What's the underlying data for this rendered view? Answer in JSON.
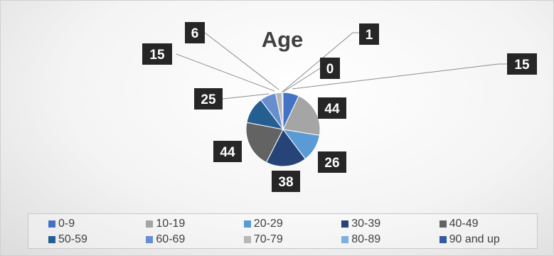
{
  "chart_data": {
    "type": "pie",
    "title": "Age",
    "categories": [
      "0-9",
      "10-19",
      "20-29",
      "30-39",
      "40-49",
      "50-59",
      "60-69",
      "70-79",
      "80-89",
      "90 and up"
    ],
    "values": [
      15,
      44,
      26,
      38,
      44,
      25,
      15,
      6,
      1,
      0
    ],
    "colors": [
      "#4472C4",
      "#A5A5A5",
      "#5B9BD5",
      "#264478",
      "#636363",
      "#255E91",
      "#698ED0",
      "#B7B7B7",
      "#7CAFDD",
      "#335AA1"
    ],
    "legend_position": "bottom",
    "data_label_style": "dark box, white bold text"
  }
}
